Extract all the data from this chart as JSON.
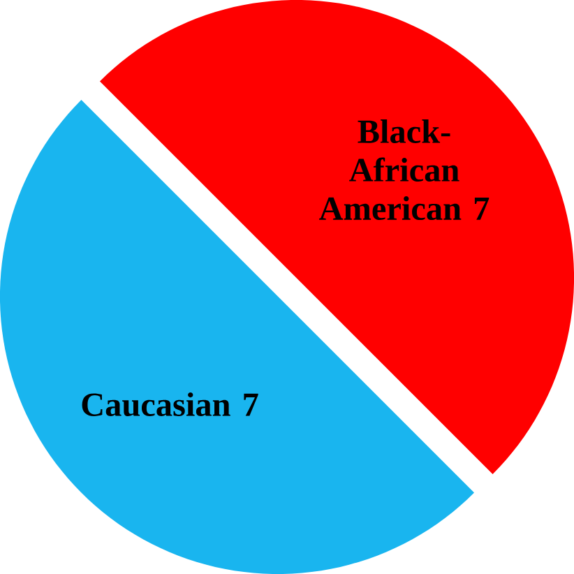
{
  "chart_data": {
    "type": "pie",
    "categories": [
      "Black-African American",
      "Caucasian"
    ],
    "values": [
      7,
      7
    ],
    "value_labels": [
      "7",
      "7"
    ],
    "colors": [
      "#ff0000",
      "#19b5ef"
    ]
  }
}
